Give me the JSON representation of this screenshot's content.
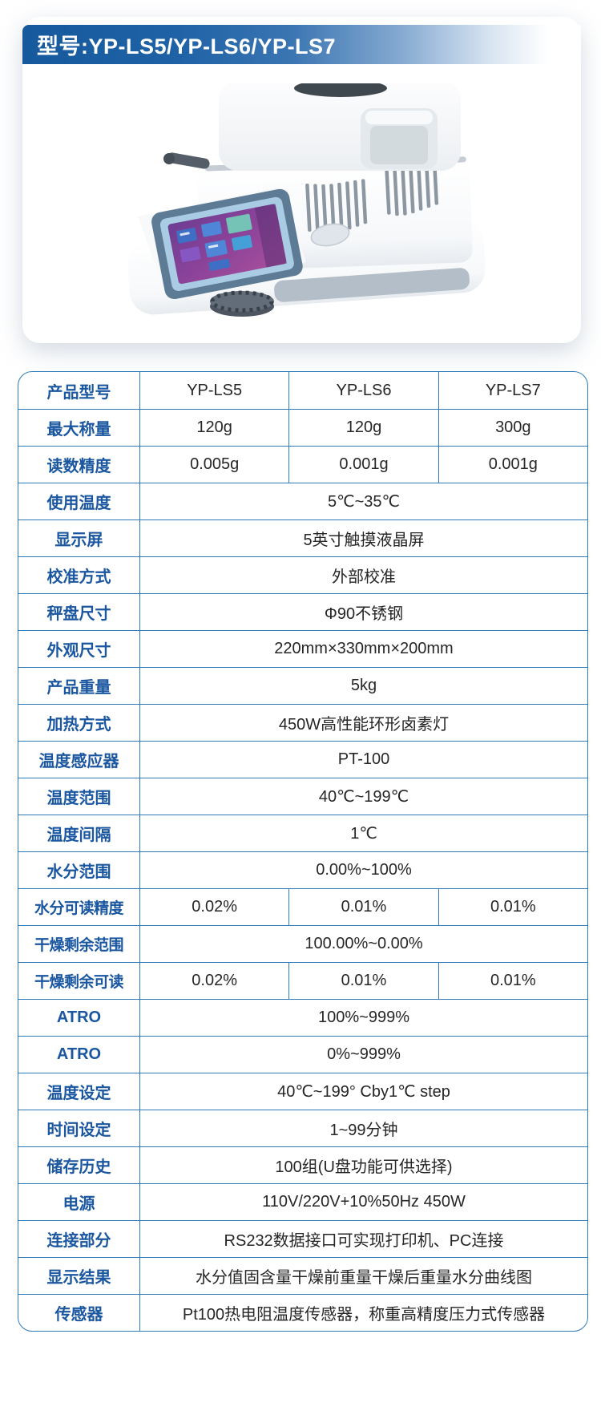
{
  "header": {
    "title": "型号:YP-LS5/YP-LS6/YP-LS7"
  },
  "product": {
    "illustration": "halogen-moisture-analyzer"
  },
  "colors": {
    "header_blue_start": "#16599d",
    "table_border": "#2f7ab8",
    "label_text": "#1a57a0",
    "value_text": "#262626",
    "screen_purple": "#8b4399",
    "bezel_slate": "#5d7b94"
  },
  "spec_table": {
    "rows": [
      {
        "label": "产品型号",
        "values": [
          "YP-LS5",
          "YP-LS6",
          "YP-LS7"
        ]
      },
      {
        "label": "最大称量",
        "values": [
          "120g",
          "120g",
          "300g"
        ]
      },
      {
        "label": "读数精度",
        "values": [
          "0.005g",
          "0.001g",
          "0.001g"
        ]
      },
      {
        "label": "使用温度",
        "value": "5℃~35℃"
      },
      {
        "label": "显示屏",
        "value": "5英寸触摸液晶屏"
      },
      {
        "label": "校准方式",
        "value": "外部校准"
      },
      {
        "label": "秤盘尺寸",
        "value": "Φ90不锈钢"
      },
      {
        "label": "外观尺寸",
        "value": "220mm×330mm×200mm"
      },
      {
        "label": "产品重量",
        "value": "5kg"
      },
      {
        "label": "加热方式",
        "value": "450W高性能环形卤素灯"
      },
      {
        "label": "温度感应器",
        "value": "PT-100"
      },
      {
        "label": "温度范围",
        "value": "40℃~199℃"
      },
      {
        "label": "温度间隔",
        "value": "1℃"
      },
      {
        "label": "水分范围",
        "value": "0.00%~100%"
      },
      {
        "label": "水分可读精度",
        "values": [
          "0.02%",
          "0.01%",
          "0.01%"
        ]
      },
      {
        "label": "干燥剩余范围",
        "value": "100.00%~0.00%"
      },
      {
        "label": "干燥剩余可读",
        "values": [
          "0.02%",
          "0.01%",
          "0.01%"
        ]
      },
      {
        "label": "ATRO",
        "value": "100%~999%"
      },
      {
        "label": "ATRO",
        "value": "0%~999%"
      },
      {
        "label": "温度设定",
        "value": "40℃~199° Cby1℃ step"
      },
      {
        "label": "时间设定",
        "value": "1~99分钟"
      },
      {
        "label": "储存历史",
        "value": "100组(U盘功能可供选择)"
      },
      {
        "label": "电源",
        "value": "110V/220V+10%50Hz 450W"
      },
      {
        "label": "连接部分",
        "value": "RS232数据接口可实现打印机、PC连接"
      },
      {
        "label": "显示结果",
        "value": "水分值固含量干燥前重量干燥后重量水分曲线图"
      },
      {
        "label": "传感器",
        "value": "Pt100热电阻温度传感器，称重高精度压力式传感器"
      }
    ]
  }
}
